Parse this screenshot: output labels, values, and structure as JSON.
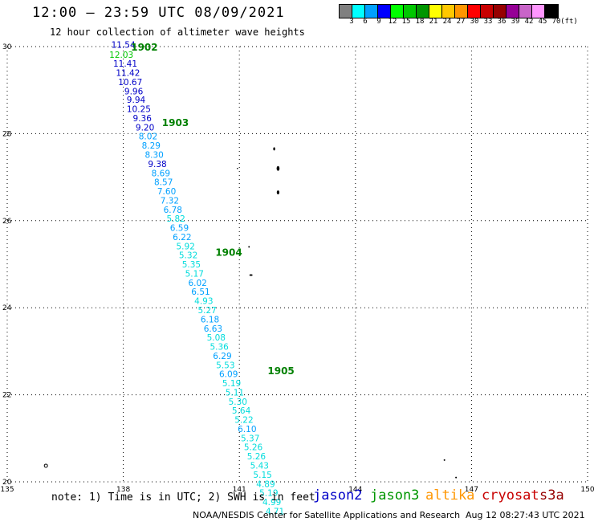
{
  "header": {
    "title": "12:00 — 23:59 UTC 08/09/2021",
    "subtitle": "12 hour collection of altimeter wave heights"
  },
  "legend": {
    "colors": [
      "#808080",
      "#00ffff",
      "#00a0ff",
      "#0000ff",
      "#00ff00",
      "#00c800",
      "#009600",
      "#ffff00",
      "#ffc800",
      "#ff9600",
      "#ff0000",
      "#c80000",
      "#960000",
      "#960096",
      "#c864c8",
      "#ff96ff",
      "#000000"
    ],
    "labels": [
      "3",
      "6",
      "9",
      "12",
      "15",
      "18",
      "21",
      "24",
      "27",
      "30",
      "33",
      "36",
      "39",
      "42",
      "45",
      "70",
      "(ft)"
    ]
  },
  "chart_data": {
    "type": "scatter",
    "xlim": [
      135,
      150
    ],
    "ylim": [
      20,
      30
    ],
    "xticks": [
      "135",
      "138",
      "141",
      "144",
      "147",
      "150"
    ],
    "yticks": [
      "20",
      "22",
      "24",
      "26",
      "28",
      "30"
    ],
    "grid": true,
    "points": [
      {
        "lon": 138.0,
        "lat": 30.03,
        "label": "11.54",
        "color": "#0000c8"
      },
      {
        "lon": 137.95,
        "lat": 29.8,
        "label": "12.03",
        "color": "#00c800"
      },
      {
        "lon": 138.05,
        "lat": 29.59,
        "label": "11.41",
        "color": "#0000c8"
      },
      {
        "lon": 138.12,
        "lat": 29.38,
        "label": "11.42",
        "color": "#0000c8"
      },
      {
        "lon": 138.18,
        "lat": 29.17,
        "label": "10.67",
        "color": "#0000c8"
      },
      {
        "lon": 138.27,
        "lat": 28.96,
        "label": "9.96",
        "color": "#0000c8"
      },
      {
        "lon": 138.33,
        "lat": 28.76,
        "label": "9.94",
        "color": "#0000c8"
      },
      {
        "lon": 138.4,
        "lat": 28.55,
        "label": "10.25",
        "color": "#0000c8"
      },
      {
        "lon": 138.49,
        "lat": 28.34,
        "label": "9.36",
        "color": "#0000c8"
      },
      {
        "lon": 138.56,
        "lat": 28.13,
        "label": "9.20",
        "color": "#0000c8"
      },
      {
        "lon": 138.64,
        "lat": 27.92,
        "label": "8.02",
        "color": "#00a0ff"
      },
      {
        "lon": 138.72,
        "lat": 27.71,
        "label": "8.29",
        "color": "#00a0ff"
      },
      {
        "lon": 138.8,
        "lat": 27.5,
        "label": "8.30",
        "color": "#00a0ff"
      },
      {
        "lon": 138.88,
        "lat": 27.29,
        "label": "9.38",
        "color": "#0000c8"
      },
      {
        "lon": 138.97,
        "lat": 27.08,
        "label": "8.69",
        "color": "#00a0ff"
      },
      {
        "lon": 139.04,
        "lat": 26.87,
        "label": "8.57",
        "color": "#00a0ff"
      },
      {
        "lon": 139.12,
        "lat": 26.66,
        "label": "7.60",
        "color": "#00a0ff"
      },
      {
        "lon": 139.2,
        "lat": 26.45,
        "label": "7.32",
        "color": "#00a0ff"
      },
      {
        "lon": 139.28,
        "lat": 26.24,
        "label": "6.78",
        "color": "#00a0ff"
      },
      {
        "lon": 139.36,
        "lat": 26.03,
        "label": "5.82",
        "color": "#00dcdc"
      },
      {
        "lon": 139.45,
        "lat": 25.82,
        "label": "6.59",
        "color": "#00a0ff"
      },
      {
        "lon": 139.52,
        "lat": 25.61,
        "label": "6.22",
        "color": "#00a0ff"
      },
      {
        "lon": 139.61,
        "lat": 25.4,
        "label": "5.92",
        "color": "#00dcdc"
      },
      {
        "lon": 139.68,
        "lat": 25.19,
        "label": "5.32",
        "color": "#00dcdc"
      },
      {
        "lon": 139.76,
        "lat": 24.98,
        "label": "5.35",
        "color": "#00dcdc"
      },
      {
        "lon": 139.84,
        "lat": 24.77,
        "label": "5.17",
        "color": "#00dcdc"
      },
      {
        "lon": 139.92,
        "lat": 24.56,
        "label": "6.02",
        "color": "#00a0ff"
      },
      {
        "lon": 140.0,
        "lat": 24.35,
        "label": "6.51",
        "color": "#00a0ff"
      },
      {
        "lon": 140.08,
        "lat": 24.14,
        "label": "4.93",
        "color": "#00dcdc"
      },
      {
        "lon": 140.17,
        "lat": 23.93,
        "label": "5.27",
        "color": "#00dcdc"
      },
      {
        "lon": 140.24,
        "lat": 23.72,
        "label": "6.18",
        "color": "#00a0ff"
      },
      {
        "lon": 140.32,
        "lat": 23.51,
        "label": "6.63",
        "color": "#00a0ff"
      },
      {
        "lon": 140.4,
        "lat": 23.3,
        "label": "5.08",
        "color": "#00dcdc"
      },
      {
        "lon": 140.48,
        "lat": 23.09,
        "label": "5.36",
        "color": "#00dcdc"
      },
      {
        "lon": 140.56,
        "lat": 22.88,
        "label": "6.29",
        "color": "#00a0ff"
      },
      {
        "lon": 140.64,
        "lat": 22.67,
        "label": "5.53",
        "color": "#00dcdc"
      },
      {
        "lon": 140.72,
        "lat": 22.46,
        "label": "6.09",
        "color": "#00a0ff"
      },
      {
        "lon": 140.8,
        "lat": 22.25,
        "label": "5.19",
        "color": "#00dcdc"
      },
      {
        "lon": 140.88,
        "lat": 22.04,
        "label": "5.11",
        "color": "#00dcdc"
      },
      {
        "lon": 140.96,
        "lat": 21.83,
        "label": "5.30",
        "color": "#00dcdc"
      },
      {
        "lon": 141.05,
        "lat": 21.62,
        "label": "5.64",
        "color": "#00dcdc"
      },
      {
        "lon": 141.12,
        "lat": 21.41,
        "label": "5.22",
        "color": "#00dcdc"
      },
      {
        "lon": 141.2,
        "lat": 21.2,
        "label": "6.10",
        "color": "#00a0ff"
      },
      {
        "lon": 141.28,
        "lat": 20.99,
        "label": "5.37",
        "color": "#00dcdc"
      },
      {
        "lon": 141.36,
        "lat": 20.78,
        "label": "5.26",
        "color": "#00dcdc"
      },
      {
        "lon": 141.44,
        "lat": 20.57,
        "label": "5.26",
        "color": "#00dcdc"
      },
      {
        "lon": 141.52,
        "lat": 20.36,
        "label": "5.43",
        "color": "#00dcdc"
      },
      {
        "lon": 141.6,
        "lat": 20.15,
        "label": "5.15",
        "color": "#00dcdc"
      },
      {
        "lon": 141.68,
        "lat": 19.94,
        "label": "4.89",
        "color": "#00dcdc"
      },
      {
        "lon": 141.76,
        "lat": 19.73,
        "label": "5.19",
        "color": "#00dcdc"
      },
      {
        "lon": 141.84,
        "lat": 19.52,
        "label": "4.99",
        "color": "#00dcdc"
      },
      {
        "lon": 141.92,
        "lat": 19.31,
        "label": "4.71",
        "color": "#00dcdc"
      }
    ],
    "time_labels": [
      {
        "lon": 138.2,
        "lat": 29.98,
        "label": "1902"
      },
      {
        "lon": 139.0,
        "lat": 28.25,
        "label": "1903"
      },
      {
        "lon": 140.38,
        "lat": 25.27,
        "label": "1904"
      },
      {
        "lon": 141.73,
        "lat": 22.55,
        "label": "1905"
      }
    ],
    "time_label_color": "#008000"
  },
  "footer": {
    "note": "note: 1) Time is in UTC; 2) SWH is in feet",
    "satellites": [
      {
        "name": "jason2",
        "color": "#0000c8"
      },
      {
        "name": "jason3",
        "color": "#009600"
      },
      {
        "name": "altika",
        "color": "#ff9600"
      },
      {
        "name": "cryosat",
        "color": "#c80000"
      },
      {
        "name": "s3a",
        "color": "#960000"
      }
    ],
    "credit": "NOAA/NESDIS Center for Satellite Applications and Research",
    "timestamp": "Aug 12 08:27:43 UTC 2021"
  }
}
